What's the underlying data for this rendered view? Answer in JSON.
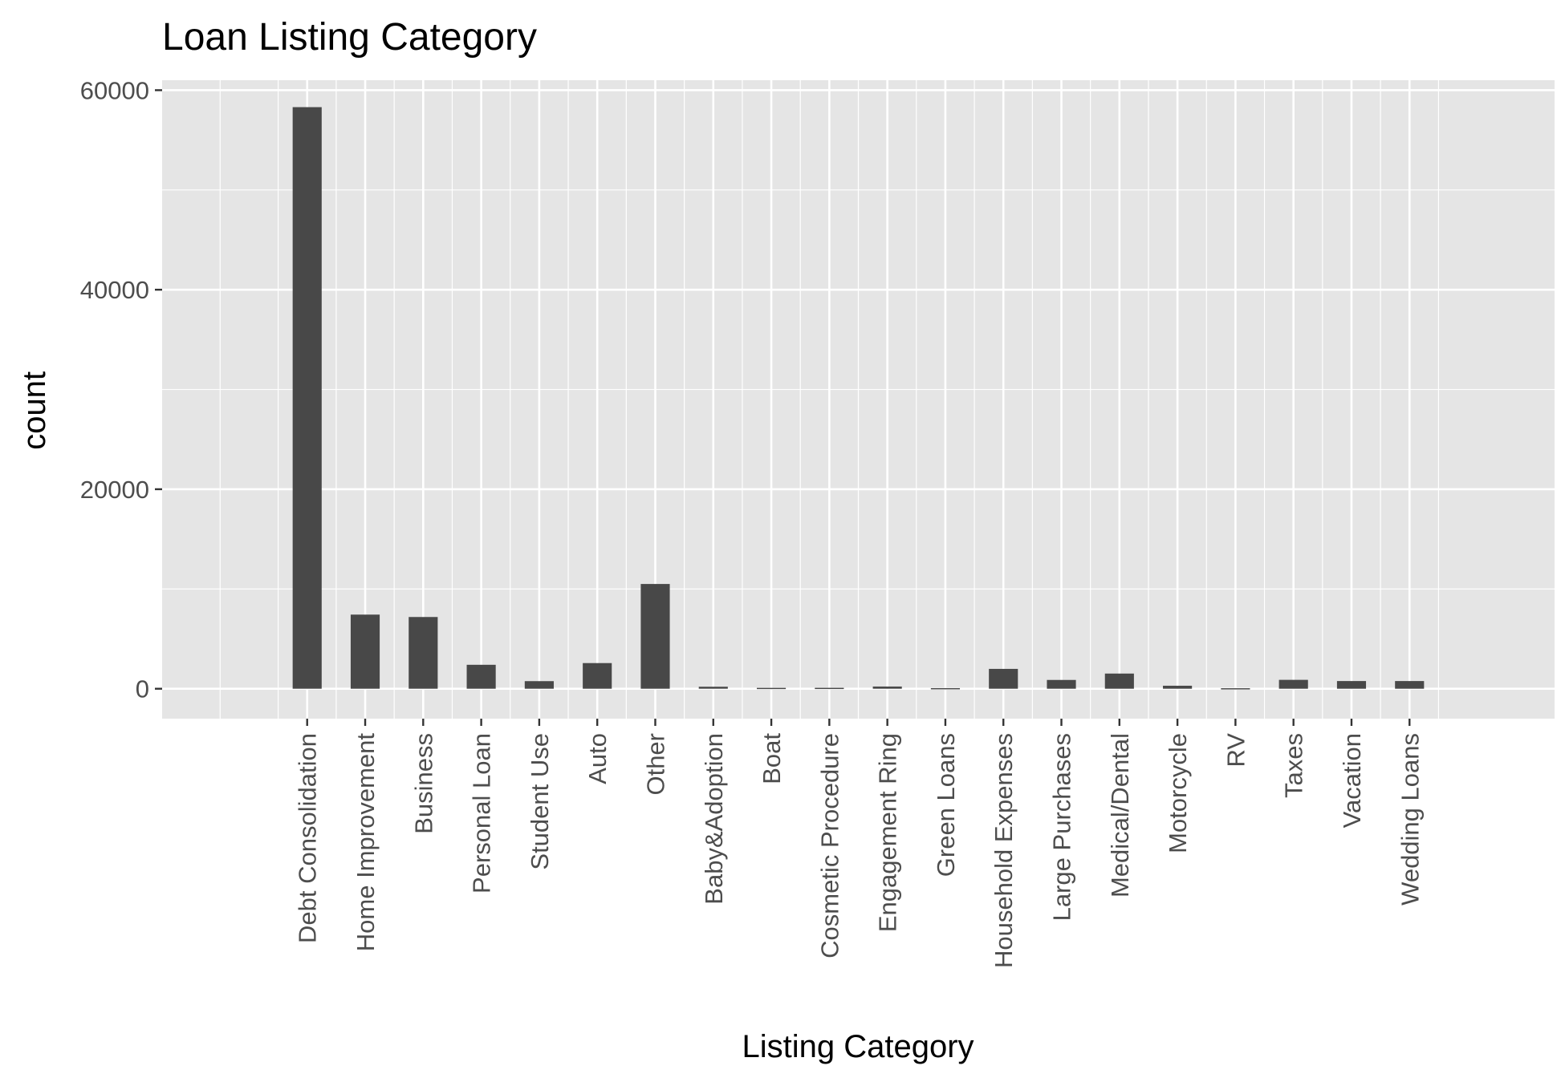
{
  "chart_data": {
    "type": "bar",
    "title": "Loan Listing Category",
    "xlabel": "Listing Category",
    "ylabel": "count",
    "categories": [
      "Debt Consolidation",
      "Home Improvement",
      "Business",
      "Personal Loan",
      "Student Use",
      "Auto",
      "Other",
      "Baby&Adoption",
      "Boat",
      "Cosmetic Procedure",
      "Engagement Ring",
      "Green Loans",
      "Household Expenses",
      "Large Purchases",
      "Medical/Dental",
      "Motorcycle",
      "RV",
      "Taxes",
      "Vacation",
      "Wedding Loans"
    ],
    "values": [
      58300,
      7430,
      7190,
      2400,
      760,
      2570,
      10500,
      200,
      85,
      90,
      220,
      60,
      1990,
      880,
      1520,
      300,
      50,
      890,
      770,
      770
    ],
    "ylim": [
      -3000,
      61000
    ],
    "yticks": [
      0,
      20000,
      40000,
      60000
    ],
    "ytick_labels": [
      "0",
      "20000",
      "40000",
      "60000"
    ],
    "x_range": [
      -2.5,
      21.5
    ],
    "grid": true,
    "colors": {
      "panel": "#e5e5e5",
      "grid": "#ffffff",
      "bar": "#484848",
      "text": "#4d4d4d",
      "title": "#000000"
    }
  }
}
